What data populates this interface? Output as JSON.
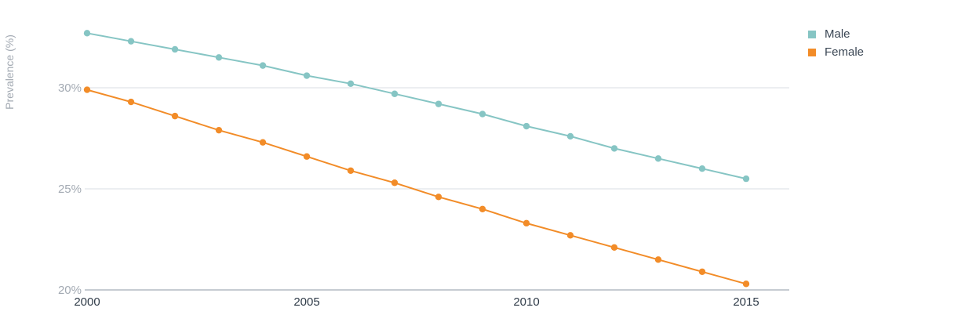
{
  "chart_data": {
    "type": "line",
    "ylabel": "Prevalence (%)",
    "x": [
      2000,
      2001,
      2002,
      2003,
      2004,
      2005,
      2006,
      2007,
      2008,
      2009,
      2010,
      2011,
      2012,
      2013,
      2014,
      2015
    ],
    "xticks": [
      2000,
      2005,
      2010,
      2015
    ],
    "xtick_labels": [
      "2000",
      "2005",
      "2010",
      "2015"
    ],
    "ylim": [
      20,
      33
    ],
    "yticks": [
      20,
      25,
      30
    ],
    "ytick_labels": [
      "20%",
      "25%",
      "30%"
    ],
    "grid": "horizontal",
    "legend_position": "top-right",
    "series": [
      {
        "name": "Male",
        "color": "#86c5c4",
        "values": [
          32.7,
          32.3,
          31.9,
          31.5,
          31.1,
          30.6,
          30.2,
          29.7,
          29.2,
          28.7,
          28.1,
          27.6,
          27.0,
          26.5,
          26.0,
          25.5
        ]
      },
      {
        "name": "Female",
        "color": "#f28c28",
        "values": [
          29.9,
          29.3,
          28.6,
          27.9,
          27.3,
          26.6,
          25.9,
          25.3,
          24.6,
          24.0,
          23.3,
          22.7,
          22.1,
          21.5,
          20.9,
          20.3
        ]
      }
    ]
  }
}
